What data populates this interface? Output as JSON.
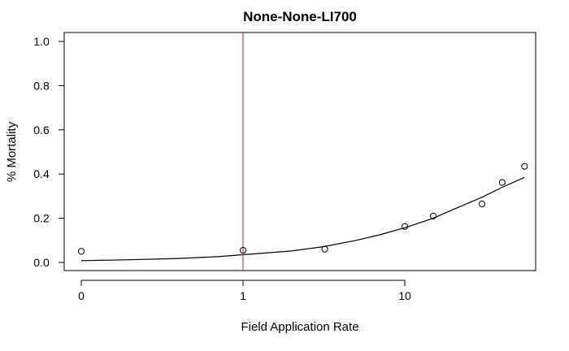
{
  "chart_data": {
    "type": "scatter",
    "title": "None-None-LI700",
    "xlabel": "Field Application Rate",
    "ylabel": "% Mortality",
    "x_scale": "log",
    "xlim": [
      0.1,
      44
    ],
    "ylim": [
      -0.04,
      1.04
    ],
    "x_ticks": [
      {
        "value": 0.1,
        "label": "0"
      },
      {
        "value": 1,
        "label": "1"
      },
      {
        "value": 10,
        "label": "10"
      }
    ],
    "y_ticks": [
      {
        "value": 0.0,
        "label": "0.0"
      },
      {
        "value": 0.2,
        "label": "0.2"
      },
      {
        "value": 0.4,
        "label": "0.4"
      },
      {
        "value": 0.6,
        "label": "0.6"
      },
      {
        "value": 0.8,
        "label": "0.8"
      },
      {
        "value": 1.0,
        "label": "1.0"
      }
    ],
    "points": [
      {
        "x": 0.1,
        "y": 0.05
      },
      {
        "x": 1.0,
        "y": 0.055
      },
      {
        "x": 3.2,
        "y": 0.06
      },
      {
        "x": 10.0,
        "y": 0.163
      },
      {
        "x": 15.0,
        "y": 0.21
      },
      {
        "x": 30.0,
        "y": 0.265
      },
      {
        "x": 40.0,
        "y": 0.362
      },
      {
        "x": 55.0,
        "y": 0.435
      }
    ],
    "fit_curve": [
      {
        "x": 0.1,
        "y": 0.008
      },
      {
        "x": 0.2,
        "y": 0.012
      },
      {
        "x": 0.4,
        "y": 0.018
      },
      {
        "x": 0.7,
        "y": 0.026
      },
      {
        "x": 1.0,
        "y": 0.035
      },
      {
        "x": 2.0,
        "y": 0.052
      },
      {
        "x": 3.2,
        "y": 0.072
      },
      {
        "x": 5.0,
        "y": 0.1
      },
      {
        "x": 7.0,
        "y": 0.125
      },
      {
        "x": 10.0,
        "y": 0.157
      },
      {
        "x": 15.0,
        "y": 0.2
      },
      {
        "x": 20.0,
        "y": 0.24
      },
      {
        "x": 30.0,
        "y": 0.295
      },
      {
        "x": 40.0,
        "y": 0.34
      },
      {
        "x": 55.0,
        "y": 0.385
      }
    ],
    "reference_line": {
      "x": 1.0,
      "color": "#b22222"
    },
    "colors": {
      "points": "#000000",
      "curve": "#000000",
      "axes": "#000000"
    },
    "grid": false,
    "legend": "none"
  }
}
